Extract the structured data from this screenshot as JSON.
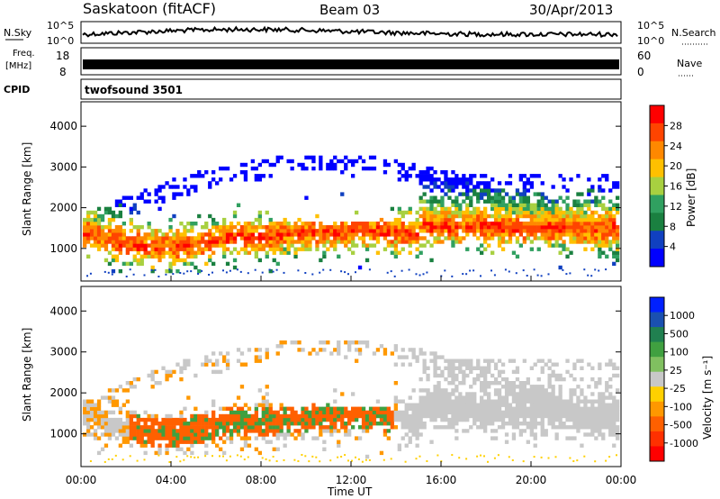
{
  "header": {
    "title_station": "Saskatoon (fitACF)",
    "title_beam": "Beam 03",
    "title_date": "30/Apr/2013"
  },
  "status_panels": {
    "nsky": {
      "left_label": "N.Sky",
      "right_label": "N.Search",
      "left_ticks": [
        "10^5",
        "10^0"
      ],
      "right_ticks": [
        "10^5",
        "10^0"
      ]
    },
    "freq": {
      "left_label_line1": "Freq.",
      "left_label_line2": "[MHz]",
      "right_label": "Nave",
      "left_ticks": [
        "18",
        "8"
      ],
      "right_ticks": [
        "60",
        "0"
      ]
    },
    "cpid": {
      "label": "CPID",
      "value": "twofsound 3501"
    }
  },
  "legends": {
    "power": {
      "label": "Power [dB]",
      "ticks": [
        "28",
        "24",
        "20",
        "16",
        "12",
        "8",
        "4"
      ],
      "colors": [
        "#ff0000",
        "#ff4400",
        "#ff8800",
        "#ffc000",
        "#a8d040",
        "#30a060",
        "#1a8040",
        "#1040c0",
        "#0000ff"
      ]
    },
    "velocity": {
      "label": "Velocity [m s⁻¹]",
      "ticks": [
        "1000",
        "500",
        "100",
        "25",
        "-25",
        "-100",
        "-500",
        "-1000"
      ],
      "colors": [
        "#0020ff",
        "#1a50b0",
        "#208050",
        "#40a040",
        "#80c060",
        "#c8c8c8",
        "#ffd000",
        "#ff9800",
        "#ff6000",
        "#ff3000",
        "#ff0000"
      ]
    }
  },
  "chart_data": [
    {
      "type": "heatmap",
      "title": "Beam 03",
      "quantity": "Power",
      "ylabel": "Slant Range [km]",
      "xlabel": "Time UT",
      "yticks": [
        "1000",
        "2000",
        "3000",
        "4000"
      ],
      "ylim": [
        200,
        4600
      ],
      "colorbar": "Power [dB]",
      "colorbar_ticks": [
        4,
        8,
        12,
        16,
        20,
        24,
        28
      ]
    },
    {
      "type": "heatmap",
      "quantity": "Velocity",
      "ylabel": "Slant Range [km]",
      "xlabel": "Time UT",
      "yticks": [
        "1000",
        "2000",
        "3000",
        "4000"
      ],
      "ylim": [
        200,
        4600
      ],
      "colorbar": "Velocity [m s⁻¹]",
      "colorbar_ticks": [
        1000,
        500,
        100,
        25,
        -25,
        -100,
        -500,
        -1000
      ]
    }
  ],
  "xaxis": {
    "label": "Time UT",
    "ticks": [
      "00:00",
      "04:00",
      "08:00",
      "12:00",
      "16:00",
      "20:00",
      "00:00"
    ]
  }
}
